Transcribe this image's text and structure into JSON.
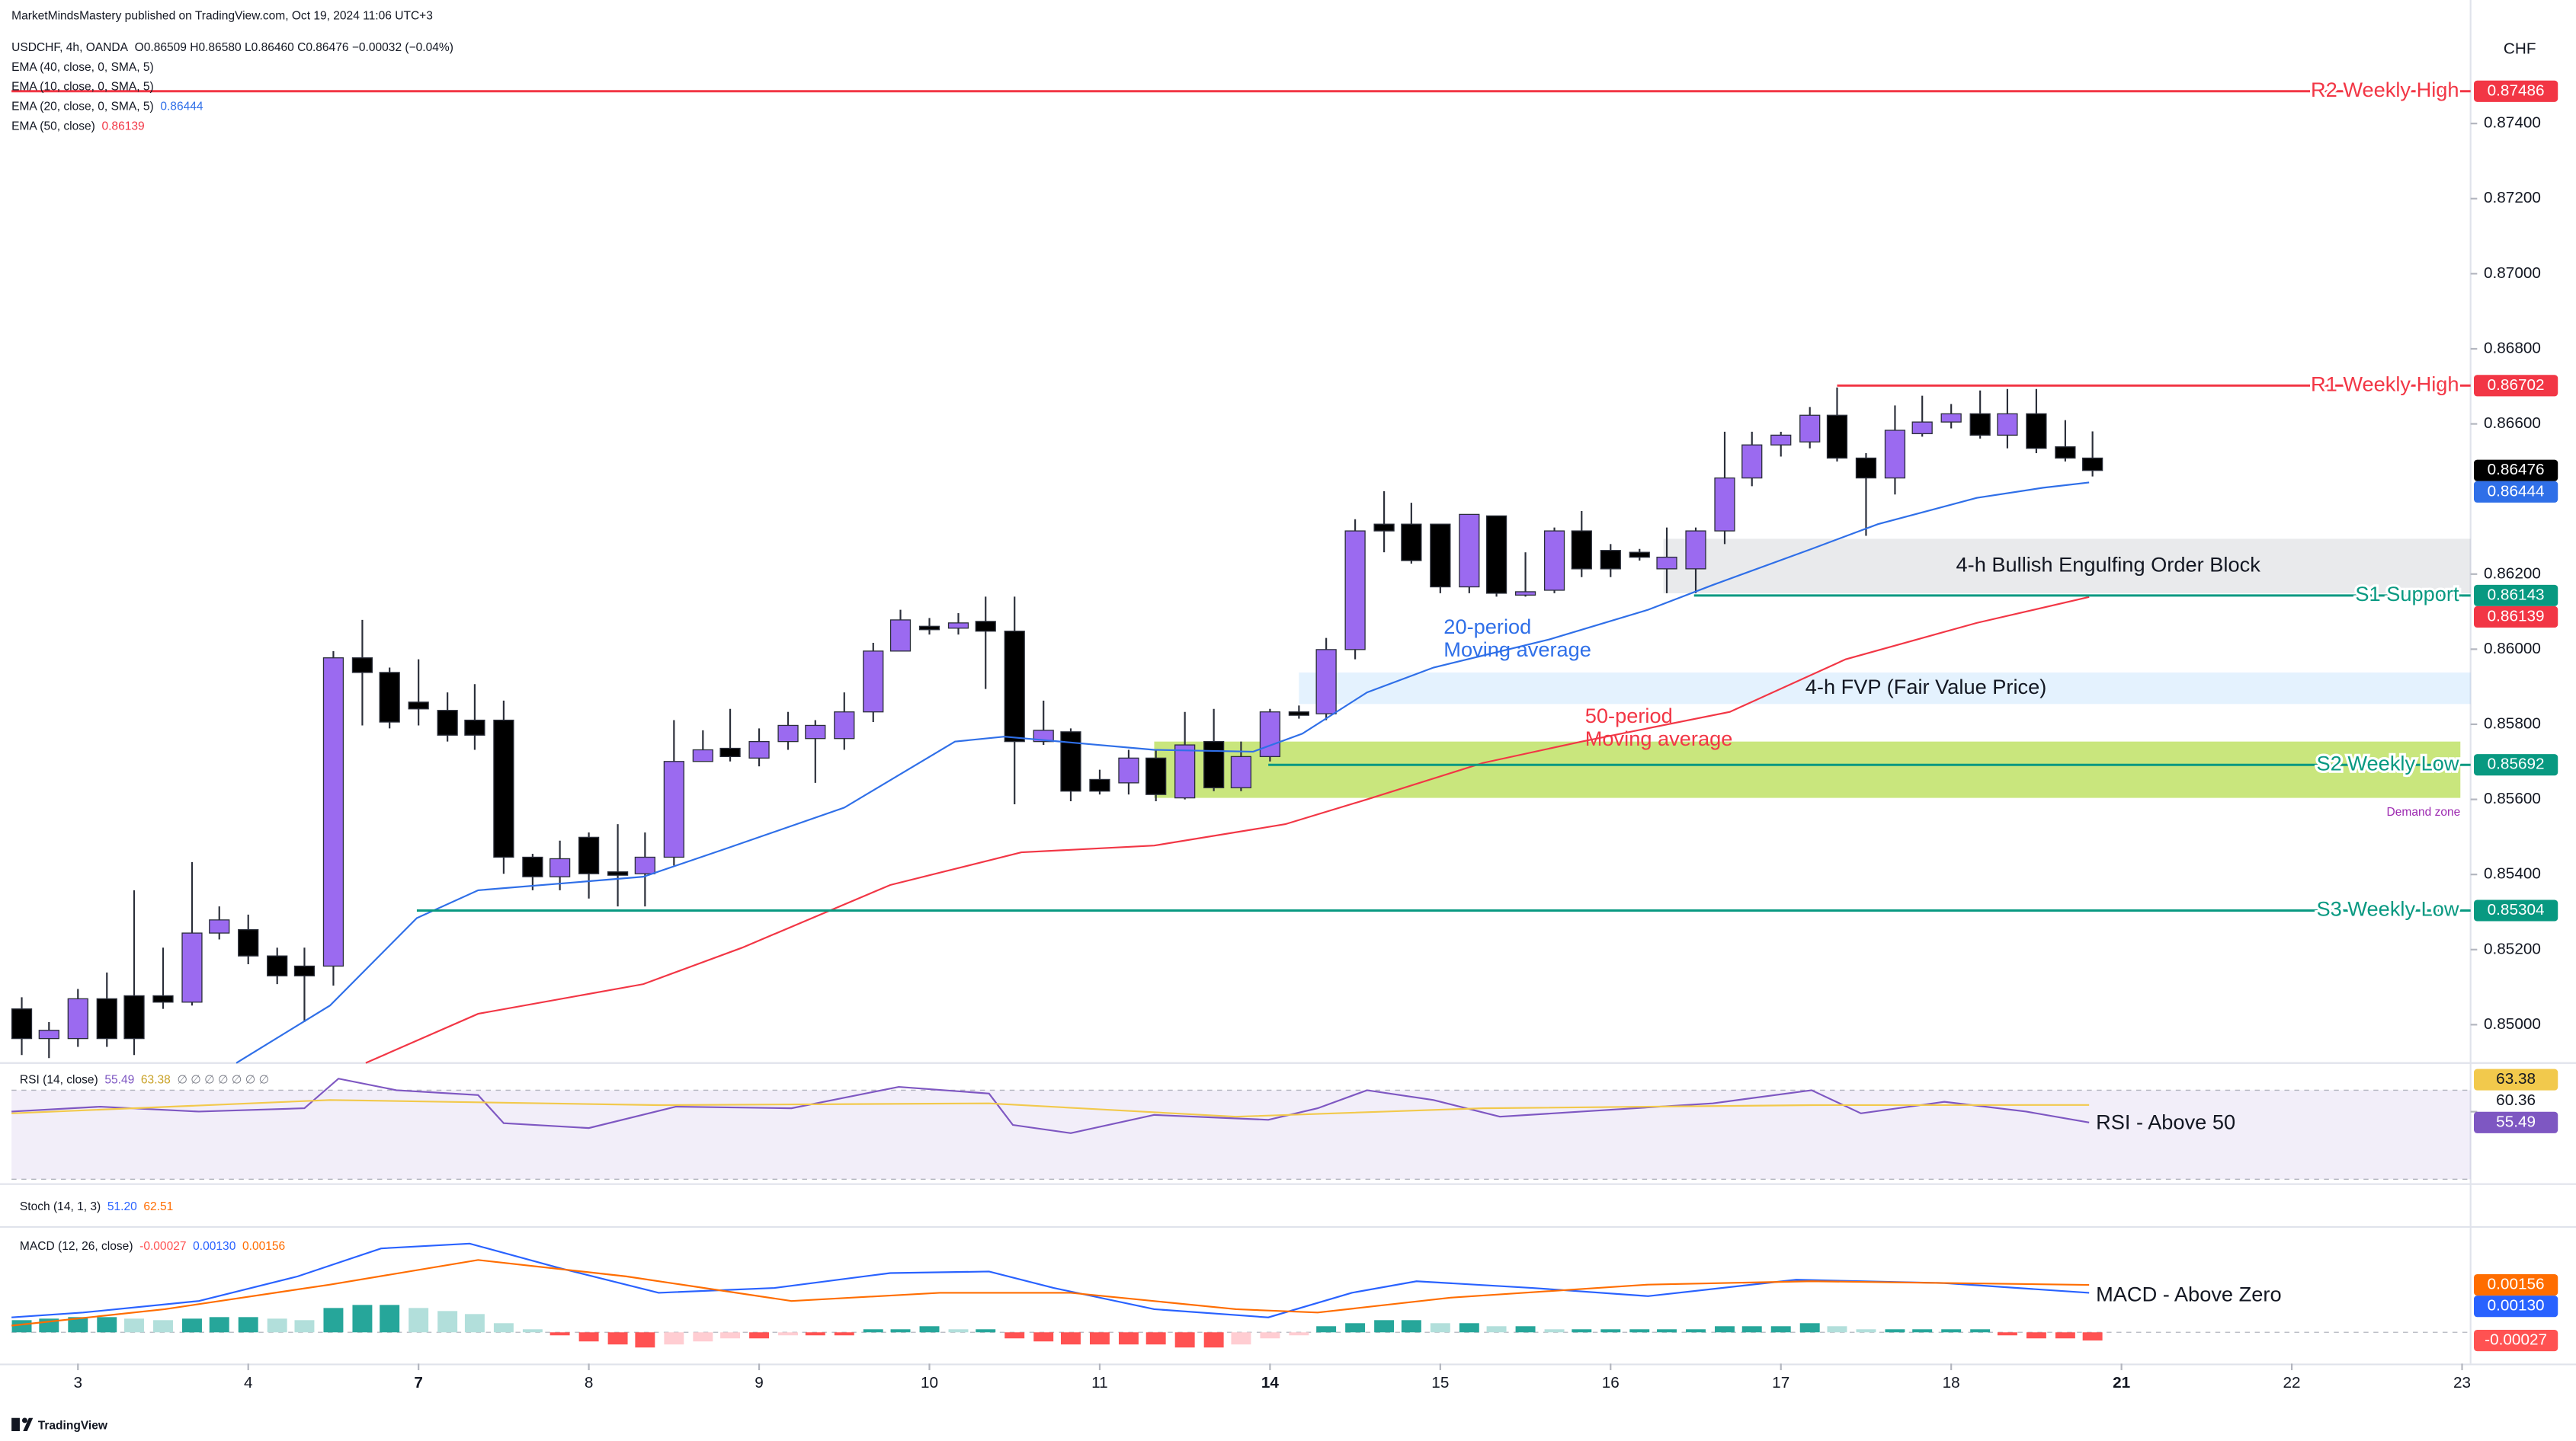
{
  "page": {
    "publisher": "MarketMindsMastery published on TradingView.com, Oct 19, 2024 11:06 UTC+3",
    "logo": "TradingView"
  },
  "chart_data": [
    {
      "type": "candlestick",
      "title": "USDCHF, 4h, OANDA",
      "ohlc": "O0.86509 H0.86580 L0.86460 C0.86476 −0.00032 (−0.04%)",
      "currency": "CHF",
      "up_color": "#9b6af0",
      "down_color": "#000000",
      "wick_color": "#2a2e39",
      "xlim": [
        -0.39,
        14.05
      ],
      "xticks": [
        {
          "value": 0,
          "label": "3"
        },
        {
          "value": 1,
          "label": "4"
        },
        {
          "value": 2,
          "label": "7",
          "bold": true
        },
        {
          "value": 3,
          "label": "8"
        },
        {
          "value": 4,
          "label": "9"
        },
        {
          "value": 5,
          "label": "10"
        },
        {
          "value": 6,
          "label": "11"
        },
        {
          "value": 7,
          "label": "14",
          "bold": true
        },
        {
          "value": 8,
          "label": "15"
        },
        {
          "value": 9,
          "label": "16"
        },
        {
          "value": 10,
          "label": "17"
        },
        {
          "value": 11,
          "label": "18"
        },
        {
          "value": 12,
          "label": "21",
          "bold": true
        },
        {
          "value": 13,
          "label": "22"
        },
        {
          "value": 14,
          "label": "23"
        }
      ],
      "ylim": [
        0.849,
        0.8765
      ],
      "yticks": [
        {
          "value": 0.874,
          "label": "0.87400"
        },
        {
          "value": 0.872,
          "label": "0.87200"
        },
        {
          "value": 0.87,
          "label": "0.87000"
        },
        {
          "value": 0.868,
          "label": "0.86800"
        },
        {
          "value": 0.866,
          "label": "0.86600"
        },
        {
          "value": 0.862,
          "label": "0.86200"
        },
        {
          "value": 0.86,
          "label": "0.86000"
        },
        {
          "value": 0.858,
          "label": "0.85800"
        },
        {
          "value": 0.856,
          "label": "0.85600"
        },
        {
          "value": 0.854,
          "label": "0.85400"
        },
        {
          "value": 0.852,
          "label": "0.85200"
        },
        {
          "value": 0.85,
          "label": "0.85000"
        }
      ],
      "x": [
        -0.33,
        -0.17,
        0,
        0.17,
        0.33,
        0.5,
        0.67,
        0.83,
        1,
        1.17,
        1.33,
        1.5,
        1.67,
        1.83,
        2,
        2.17,
        2.33,
        2.5,
        2.67,
        2.83,
        3,
        3.17,
        3.33,
        3.5,
        3.67,
        3.83,
        4,
        4.17,
        4.33,
        4.5,
        4.67,
        4.83,
        5,
        5.17,
        5.33,
        5.5,
        5.67,
        5.83,
        6,
        6.17,
        6.33,
        6.5,
        6.67,
        6.83,
        7,
        7.17,
        7.33,
        7.5,
        7.67,
        7.83,
        8,
        8.17,
        8.33,
        8.5,
        8.67,
        8.83,
        9,
        9.17,
        9.33,
        9.5,
        9.67,
        9.83,
        10,
        10.17,
        10.33,
        10.5,
        10.67,
        10.83,
        11,
        11.17,
        11.33,
        11.5,
        11.67,
        11.83
      ],
      "open": [
        0.85042,
        0.84963,
        0.84963,
        0.85069,
        0.85077,
        0.85077,
        0.8506,
        0.85244,
        0.85253,
        0.85183,
        0.85156,
        0.85156,
        0.85977,
        0.85938,
        0.85859,
        0.85837,
        0.85811,
        0.85811,
        0.85446,
        0.85394,
        0.85499,
        0.85407,
        0.85402,
        0.85446,
        0.85701,
        0.85736,
        0.8571,
        0.85754,
        0.85762,
        0.85762,
        0.85833,
        0.85995,
        0.86061,
        0.86056,
        0.86074,
        0.86048,
        0.85754,
        0.8578,
        0.85653,
        0.85644,
        0.8571,
        0.85604,
        0.85754,
        0.85631,
        0.85714,
        0.85833,
        0.85828,
        0.85999,
        0.86333,
        0.86333,
        0.86333,
        0.86166,
        0.86355,
        0.86144,
        0.86157,
        0.86315,
        0.86263,
        0.86258,
        0.86214,
        0.86214,
        0.86315,
        0.86456,
        0.86544,
        0.86552,
        0.86623,
        0.86509,
        0.86456,
        0.86574,
        0.86605,
        0.86627,
        0.8657,
        0.86627,
        0.86539,
        0.86509
      ],
      "high": [
        0.85073,
        0.85007,
        0.85095,
        0.85139,
        0.85358,
        0.85205,
        0.85433,
        0.85315,
        0.85293,
        0.85205,
        0.85205,
        0.85995,
        0.86078,
        0.85951,
        0.85973,
        0.85885,
        0.85907,
        0.85863,
        0.85455,
        0.8549,
        0.85512,
        0.85534,
        0.85512,
        0.85811,
        0.85784,
        0.85841,
        0.85789,
        0.85833,
        0.85811,
        0.85885,
        0.86017,
        0.86105,
        0.86083,
        0.86096,
        0.8614,
        0.8614,
        0.85863,
        0.85789,
        0.85679,
        0.85732,
        0.85732,
        0.85833,
        0.85841,
        0.85754,
        0.85841,
        0.8585,
        0.8603,
        0.86346,
        0.86421,
        0.8639,
        0.86333,
        0.86359,
        0.86355,
        0.86258,
        0.86324,
        0.86368,
        0.8628,
        0.86267,
        0.86324,
        0.86324,
        0.86579,
        0.86579,
        0.86579,
        0.86645,
        0.86697,
        0.86522,
        0.86649,
        0.86675,
        0.86653,
        0.86689,
        0.86693,
        0.86693,
        0.8661,
        0.8658
      ],
      "low": [
        0.84919,
        0.84911,
        0.84941,
        0.84941,
        0.84919,
        0.85042,
        0.85051,
        0.85227,
        0.85161,
        0.85108,
        0.85007,
        0.85104,
        0.85797,
        0.85789,
        0.85797,
        0.85754,
        0.85732,
        0.85402,
        0.85358,
        0.85358,
        0.85336,
        0.85315,
        0.85315,
        0.85424,
        0.85701,
        0.85701,
        0.85688,
        0.85732,
        0.85644,
        0.85732,
        0.85806,
        0.85995,
        0.86039,
        0.86039,
        0.85894,
        0.85587,
        0.85745,
        0.85595,
        0.85613,
        0.85613,
        0.85595,
        0.856,
        0.85622,
        0.85622,
        0.85701,
        0.85815,
        0.85811,
        0.85973,
        0.86258,
        0.86228,
        0.86149,
        0.86149,
        0.8614,
        0.8614,
        0.86149,
        0.86192,
        0.86192,
        0.86236,
        0.86149,
        0.86149,
        0.8628,
        0.86434,
        0.86513,
        0.86535,
        0.865,
        0.86302,
        0.86412,
        0.86566,
        0.86588,
        0.86561,
        0.86535,
        0.86522,
        0.865,
        0.8646
      ],
      "close": [
        0.84963,
        0.84985,
        0.85069,
        0.84963,
        0.84963,
        0.8506,
        0.85244,
        0.85279,
        0.85183,
        0.8513,
        0.8513,
        0.85977,
        0.85938,
        0.85806,
        0.85841,
        0.85771,
        0.85771,
        0.85446,
        0.85394,
        0.85442,
        0.85402,
        0.85398,
        0.85446,
        0.85701,
        0.85732,
        0.85714,
        0.85754,
        0.85797,
        0.85797,
        0.85833,
        0.85995,
        0.86078,
        0.86052,
        0.8607,
        0.86048,
        0.85754,
        0.85784,
        0.85622,
        0.85622,
        0.8571,
        0.85613,
        0.85745,
        0.85631,
        0.85714,
        0.85833,
        0.85824,
        0.85999,
        0.86315,
        0.86315,
        0.86236,
        0.86166,
        0.86359,
        0.86149,
        0.86153,
        0.86315,
        0.86214,
        0.86214,
        0.86245,
        0.86245,
        0.86315,
        0.86456,
        0.86544,
        0.8657,
        0.86623,
        0.86509,
        0.86456,
        0.86583,
        0.86605,
        0.86627,
        0.8657,
        0.86627,
        0.86535,
        0.86509,
        0.86476
      ],
      "indicators": [
        {
          "name": "EMA (40, close, 0, SMA, 5)"
        },
        {
          "name": "EMA (10, close, 0, SMA, 5)"
        }
      ],
      "series": [
        {
          "name": "EMA (20, close, 0, SMA, 5)",
          "color": "#2f6fe8",
          "value_label": "0.86444",
          "x": [
            0.93,
            1.48,
            1.99,
            2.35,
            3.32,
            3.8,
            4.5,
            5.15,
            5.44,
            6.32,
            6.9,
            7.19,
            7.57,
            7.96,
            8.64,
            9.22,
            9.6,
            10.18,
            10.57,
            11.15,
            11.54,
            11.81
          ],
          "values": [
            0.84898,
            0.85051,
            0.85284,
            0.85358,
            0.85394,
            0.85468,
            0.85578,
            0.85754,
            0.85767,
            0.85732,
            0.85727,
            0.85775,
            0.85885,
            0.85951,
            0.86026,
            0.86105,
            0.86171,
            0.86267,
            0.86333,
            0.86403,
            0.8643,
            0.86444
          ]
        },
        {
          "name": "EMA (50, close)",
          "color": "#f23645",
          "value_label": "0.86139",
          "x": [
            1.69,
            2.35,
            3.32,
            3.9,
            4.77,
            5.54,
            6.32,
            7.09,
            7.57,
            8.25,
            8.83,
            9.7,
            10.38,
            11.15,
            11.81
          ],
          "values": [
            0.84898,
            0.85029,
            0.85108,
            0.85205,
            0.85372,
            0.85459,
            0.85477,
            0.85534,
            0.856,
            0.85697,
            0.85754,
            0.85833,
            0.85973,
            0.8607,
            0.86139
          ]
        }
      ],
      "levels": [
        {
          "name": "R2 Weekly High",
          "value": 0.87486,
          "x_start": -0.39,
          "color": "#f23645"
        },
        {
          "name": "R1 Weekly High",
          "value": 0.86702,
          "x_start": 10.33,
          "color": "#f23645"
        },
        {
          "name": "S1 Support",
          "value": 0.86143,
          "x_start": 9.49,
          "color": "#089981"
        },
        {
          "name": "S2 Weekly Low",
          "value": 0.85692,
          "x_start": 6.99,
          "color": "#089981"
        },
        {
          "name": "S3 Weekly Low",
          "value": 0.85304,
          "x_start": 1.99,
          "color": "#089981"
        }
      ],
      "zones": [
        {
          "label": "4-h Bullish Engulfing Order Block",
          "x_start": 9.31,
          "x_end": 14.05,
          "top": 0.86294,
          "bottom": 0.86149,
          "color": "rgba(120,123,134,0.16)",
          "label_color": "#131722"
        },
        {
          "label": "4-h FVP (Fair Value Price)",
          "x_start": 7.17,
          "x_end": 14.05,
          "top": 0.85938,
          "bottom": 0.85854,
          "color": "rgba(33,150,243,0.12)",
          "label_color": "#131722"
        },
        {
          "label": "Demand zone",
          "x_start": 6.32,
          "x_end": 13.99,
          "top": 0.85754,
          "bottom": 0.85604,
          "color": "rgba(183,221,82,0.75)",
          "label_color": "#9c27b0",
          "label_below": true
        }
      ],
      "annotations": [
        {
          "lines": [
            "20-period",
            "Moving average"
          ],
          "x": 8.02,
          "y": 0.86056,
          "color": "#2f6fe8"
        },
        {
          "lines": [
            "50-period",
            "Moving average"
          ],
          "x": 8.85,
          "y": 0.85819,
          "color": "#f23645"
        }
      ]
    },
    {
      "type": "line",
      "title": "RSI (14, close)",
      "placeholders": "∅ ∅ ∅ ∅ ∅ ∅ ∅",
      "ylim": [
        29.3,
        81.1
      ],
      "band": [
        30,
        70
      ],
      "band_color": "rgba(126,87,194,0.1)",
      "yticks": [
        60.36
      ],
      "series": [
        {
          "color": "#7e57c2",
          "value_label": "55.49",
          "x": [
            -0.39,
            0.13,
            0.71,
            1.33,
            1.53,
            1.87,
            2.35,
            2.5,
            3,
            3.51,
            4.19,
            4.82,
            5.35,
            5.49,
            5.83,
            6.32,
            6.99,
            7.28,
            7.57,
            7.96,
            8.35,
            8.83,
            9.6,
            10.18,
            10.47,
            10.96,
            11.44,
            11.81
          ],
          "values": [
            60.4,
            62.6,
            60.4,
            61.9,
            75.2,
            70,
            67.8,
            55.2,
            53,
            62.6,
            61.9,
            71.5,
            68.5,
            54.4,
            50.7,
            58.9,
            56.7,
            61.9,
            70,
            65.6,
            58.1,
            60.4,
            64.1,
            70,
            59.6,
            64.8,
            60.4,
            55.49
          ]
        },
        {
          "color": "#f2c94c",
          "value_label": "63.38",
          "x": [
            -0.39,
            1.48,
            3.41,
            5.35,
            6.8,
            8.25,
            10.18,
            11.81
          ],
          "values": [
            59.6,
            65.6,
            63.3,
            64.1,
            58.1,
            61.9,
            63.3,
            63.38
          ]
        }
      ],
      "annotation": {
        "text": "RSI - Above 50",
        "x": 11.85,
        "y": 55
      }
    },
    {
      "type": "stoch",
      "title": "Stoch (14, 1, 3)",
      "value_labels": [
        "51.20",
        "62.51"
      ],
      "colors": [
        "#2962ff",
        "#ff6d00"
      ]
    },
    {
      "type": "macd",
      "title": "MACD (12, 26, close)",
      "ylim": [
        -0.00103,
        0.00336
      ],
      "histogram": {
        "value_label": "-0.00027",
        "colors": [
          "#26a69a",
          "#b2dfdb",
          "#ff5252",
          "#ffcdd2"
        ],
        "values": [
          0.0004,
          0.00045,
          0.0005,
          0.0005,
          0.00045,
          0.0004,
          0.00045,
          0.0005,
          0.0005,
          0.00045,
          0.0004,
          0.0008,
          0.0009,
          0.0009,
          0.0008,
          0.0007,
          0.0006,
          0.0003,
          0.0001,
          -0.0001,
          -0.0003,
          -0.0004,
          -0.0005,
          -0.0004,
          -0.0003,
          -0.0002,
          -0.0002,
          -0.0001,
          -0.0001,
          -0.0001,
          0.0001,
          0.0001,
          0.0002,
          0.0001,
          0.0001,
          -0.0002,
          -0.0003,
          -0.0004,
          -0.0004,
          -0.0004,
          -0.0004,
          -0.0005,
          -0.0005,
          -0.0004,
          -0.0002,
          -0.0001,
          0.0002,
          0.0003,
          0.0004,
          0.0004,
          0.0003,
          0.0003,
          0.0002,
          0.0002,
          0.0001,
          0.0001,
          0.0001,
          0.0001,
          0.0001,
          0.0001,
          0.0002,
          0.0002,
          0.0002,
          0.0003,
          0.0002,
          0.0001,
          0.0001,
          0.0001,
          0.0001,
          0.0001,
          -0.0001,
          -0.0002,
          -0.0002,
          -0.00027
        ]
      },
      "series": [
        {
          "color": "#2962ff",
          "value_label": "0.00130",
          "x": [
            -0.39,
            0.03,
            0.71,
            1.29,
            1.78,
            2.3,
            2.83,
            3.41,
            4.09,
            4.77,
            5.35,
            5.73,
            6.32,
            6.99,
            7.48,
            7.86,
            8.54,
            9.22,
            10.09,
            10.96,
            11.81
          ],
          "values": [
            0.00049,
            0.00065,
            0.00103,
            0.00184,
            0.00276,
            0.00292,
            0.00211,
            0.0013,
            0.00146,
            0.00195,
            0.002,
            0.00146,
            0.00076,
            0.00049,
            0.0013,
            0.00168,
            0.00146,
            0.00119,
            0.00173,
            0.00162,
            0.0013
          ]
        },
        {
          "color": "#ff6d00",
          "value_label": "0.00156",
          "x": [
            -0.39,
            0.51,
            1.48,
            2.35,
            3.22,
            4.19,
            5.06,
            5.83,
            6.8,
            7.28,
            8.06,
            9.22,
            10.18,
            11.81
          ],
          "values": [
            0.00022,
            0.00076,
            0.00157,
            0.00238,
            0.00184,
            0.00103,
            0.0013,
            0.0013,
            0.00076,
            0.00065,
            0.00114,
            0.00157,
            0.00168,
            0.00156
          ]
        }
      ],
      "annotation": {
        "text": "MACD - Above Zero",
        "x": 11.85,
        "y": 0.0012
      }
    }
  ]
}
